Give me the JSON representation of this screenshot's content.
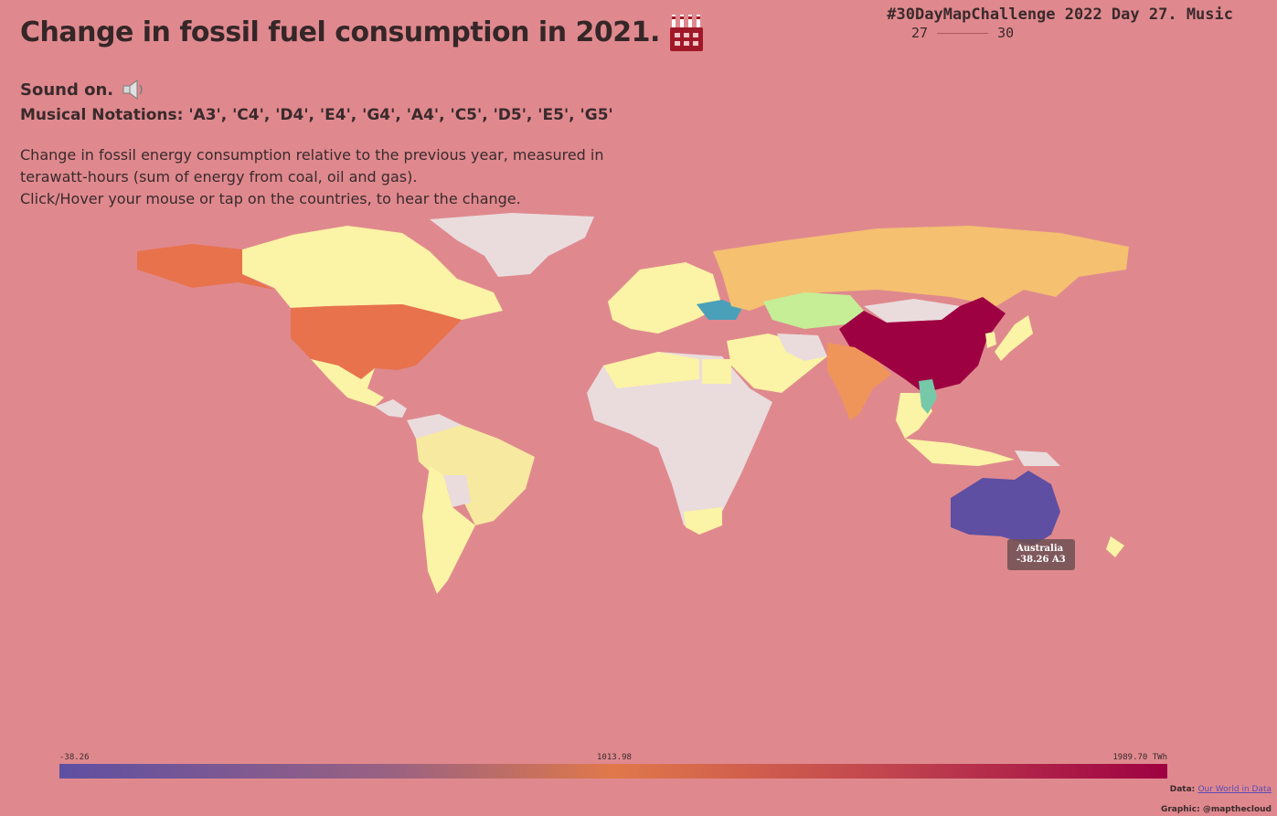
{
  "header": {
    "title": "Change in fossil fuel consumption in 2021.",
    "challenge": "#30DayMapChallenge 2022 Day 27. Music",
    "day_start": "27",
    "day_end": "30"
  },
  "sound": {
    "label": "Sound on."
  },
  "notations": "Musical Notations: 'A3', 'C4', 'D4', 'E4', 'G4', 'A4', 'C5', 'D5', 'E5', 'G5'",
  "description": {
    "line1": "Change in fossil energy consumption relative to the previous year, measured in",
    "line2": "terawatt-hours (sum of energy from coal, oil and gas).",
    "line3": "Click/Hover your mouse or tap on the countries, to hear the change."
  },
  "tooltip": {
    "country": "Australia",
    "value": "-38.26 A3"
  },
  "legend": {
    "min": "-38.26",
    "mid": "1013.98",
    "max": "1989.70 TWh"
  },
  "credits": {
    "data_label": "Data:",
    "data_link": "Our World in Data",
    "graphic": "Graphic: @mapthecloud"
  },
  "colors": {
    "background": "#df898e",
    "no_data": "#eadcdd",
    "low": "#5e4fa2",
    "high": "#9e0142"
  },
  "icons": [
    "factory-icon",
    "speaker-icon"
  ]
}
